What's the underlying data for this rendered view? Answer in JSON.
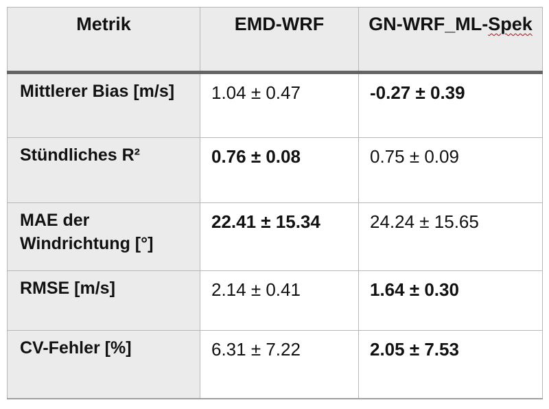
{
  "table": {
    "header": {
      "metric": "Metrik",
      "model_a": "EMD-WRF",
      "model_b_prefix": "GN-WRF_ML-",
      "model_b_flagged_word": "Spek"
    },
    "rows": [
      {
        "metric": "Mittlerer Bias [m/s]",
        "emd_wrf": "1.04 ± 0.47",
        "gn_wrf_ml_spek": "-0.27 ± 0.39"
      },
      {
        "metric": "Stündliches R²",
        "emd_wrf": "0.76 ± 0.08",
        "gn_wrf_ml_spek": "0.75 ± 0.09"
      },
      {
        "metric": "MAE der Windrichtung [°]",
        "emd_wrf": "22.41 ± 15.34",
        "gn_wrf_ml_spek": "24.24 ± 15.65"
      },
      {
        "metric": "RMSE [m/s]",
        "emd_wrf": "2.14 ± 0.41",
        "gn_wrf_ml_spek": "1.64 ± 0.30"
      },
      {
        "metric": "CV-Fehler [%]",
        "emd_wrf": "6.31 ± 7.22",
        "gn_wrf_ml_spek": "2.05 ± 7.53"
      }
    ],
    "bold_value_per_row": [
      "gn_wrf_ml_spek",
      "emd_wrf",
      "emd_wrf",
      "gn_wrf_ml_spek",
      "gn_wrf_ml_spek"
    ]
  },
  "colors": {
    "header_background": "#ebebeb",
    "label_background": "#ebebeb",
    "cell_background": "#ffffff",
    "grid_line": "#b7b7b7",
    "header_divider": "#646464",
    "text": "#111111",
    "spellcheck_underline": "#c00000"
  }
}
